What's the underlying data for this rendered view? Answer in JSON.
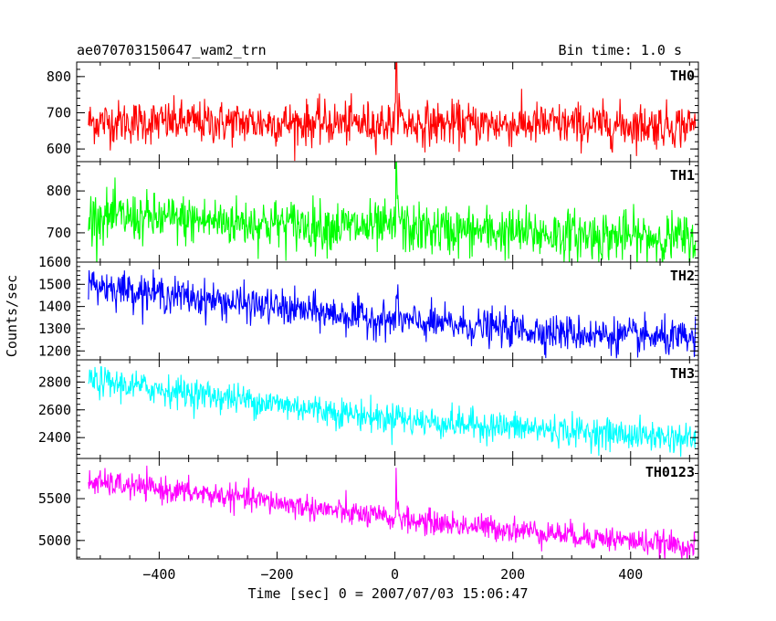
{
  "chart_data": {
    "type": "line",
    "title": "ae070703150647_wam2_trn",
    "bin_time_label": "Bin time: 1.0 s",
    "xlabel": "Time [sec] 0 = 2007/07/03 15:06:47",
    "ylabel": "Counts/sec",
    "xlim": [
      -540,
      515
    ],
    "x_range": [
      -520,
      510
    ],
    "x_ticks": [
      -400,
      -200,
      0,
      200,
      400
    ],
    "x_tick_labels": [
      "−400",
      "−200",
      "0",
      "200",
      "400"
    ],
    "grid": false,
    "legend": "none",
    "panels": [
      {
        "name": "TH0",
        "color": "#ff0000",
        "ylim": [
          565,
          840
        ],
        "y_ticks": [
          600,
          700,
          800
        ],
        "y_tick_labels": [
          "600",
          "700",
          "800"
        ],
        "trend": [
          [
            -520,
            675
          ],
          [
            510,
            665
          ]
        ],
        "noise": 30,
        "peak": {
          "x": 2,
          "value": 840,
          "description": "burst"
        }
      },
      {
        "name": "TH1",
        "color": "#00ff00",
        "ylim": [
          630,
          870
        ],
        "y_ticks": [
          700,
          800
        ],
        "y_tick_labels": [
          "700",
          "800"
        ],
        "trend": [
          [
            -520,
            740
          ],
          [
            0,
            710
          ],
          [
            510,
            685
          ]
        ],
        "noise": 30,
        "peak": {
          "x": 2,
          "value": 870,
          "description": "burst"
        }
      },
      {
        "name": "TH2",
        "color": "#0000ff",
        "ylim": [
          1160,
          1600
        ],
        "y_ticks": [
          1200,
          1300,
          1400,
          1500,
          1600
        ],
        "y_tick_labels": [
          "1200",
          "1300",
          "1400",
          "1500",
          "1600"
        ],
        "trend": [
          [
            -520,
            1500
          ],
          [
            -300,
            1425
          ],
          [
            0,
            1335
          ],
          [
            300,
            1280
          ],
          [
            510,
            1250
          ]
        ],
        "noise": 40,
        "peak": {
          "x": 2,
          "value": 1450,
          "description": "burst"
        }
      },
      {
        "name": "TH3",
        "color": "#00ffff",
        "ylim": [
          2250,
          2960
        ],
        "y_ticks": [
          2400,
          2600,
          2800
        ],
        "y_tick_labels": [
          "2400",
          "2600",
          "2800"
        ],
        "trend": [
          [
            -520,
            2810
          ],
          [
            -250,
            2670
          ],
          [
            0,
            2530
          ],
          [
            250,
            2460
          ],
          [
            510,
            2390
          ]
        ],
        "noise": 55,
        "peak": {
          "x": 2,
          "value": 2680,
          "description": "burst"
        }
      },
      {
        "name": "TH0123",
        "color": "#ff00ff",
        "ylim": [
          4780,
          5980
        ],
        "y_ticks": [
          5000,
          5500
        ],
        "y_tick_labels": [
          "5000",
          "5500"
        ],
        "trend": [
          [
            -520,
            5700
          ],
          [
            -250,
            5500
          ],
          [
            0,
            5250
          ],
          [
            250,
            5100
          ],
          [
            510,
            4920
          ]
        ],
        "noise": 75,
        "peak": {
          "x": 2,
          "value": 5690,
          "description": "burst"
        }
      }
    ]
  }
}
